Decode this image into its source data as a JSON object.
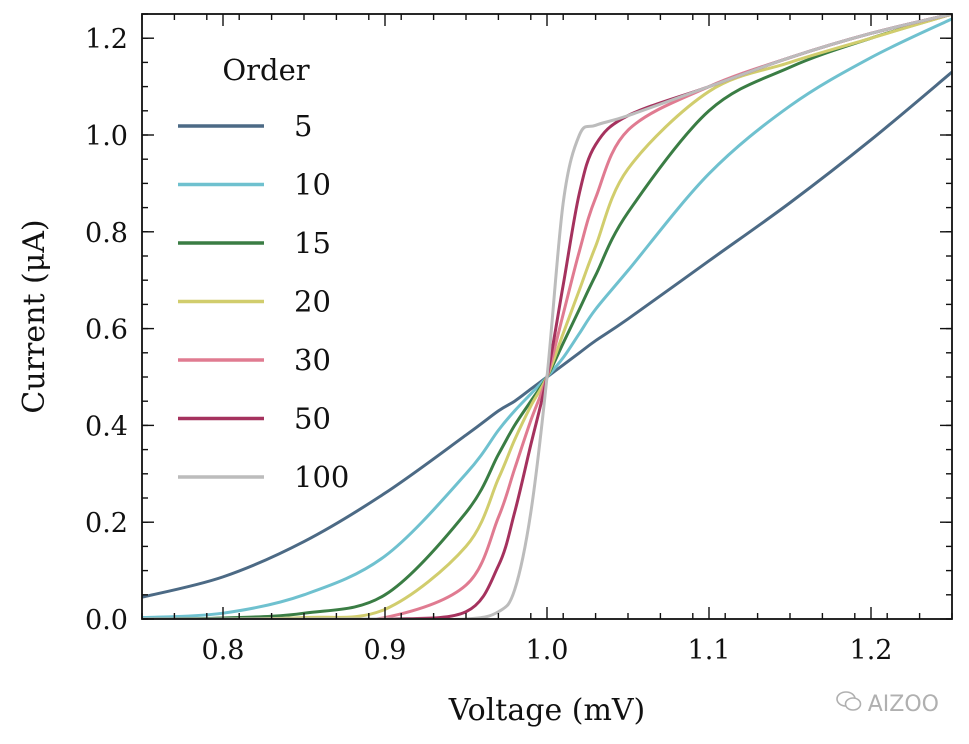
{
  "chart_data": {
    "type": "line",
    "xlabel": "Voltage (mV)",
    "ylabel": "Current (μA)",
    "xlim": [
      0.75,
      1.25
    ],
    "ylim": [
      0.0,
      1.25
    ],
    "x_ticks": [
      "0.8",
      "0.9",
      "1.0",
      "1.1",
      "1.2"
    ],
    "y_ticks": [
      "0.0",
      "0.2",
      "0.4",
      "0.6",
      "0.8",
      "1.0",
      "1.2"
    ],
    "grid": false,
    "legend": {
      "title": "Order",
      "position": "top-left"
    },
    "x": [
      0.75,
      0.8,
      0.85,
      0.9,
      0.95,
      0.97,
      0.98,
      0.99,
      1.0,
      1.01,
      1.02,
      1.03,
      1.05,
      1.1,
      1.15,
      1.2,
      1.25
    ],
    "series": [
      {
        "name": "5",
        "color": "#4c6a85",
        "values": [
          0.045,
          0.087,
          0.16,
          0.26,
          0.38,
          0.43,
          0.45,
          0.475,
          0.5,
          0.525,
          0.55,
          0.575,
          0.62,
          0.74,
          0.86,
          0.99,
          1.13
        ]
      },
      {
        "name": "10",
        "color": "#6fc1cf",
        "values": [
          0.003,
          0.012,
          0.05,
          0.13,
          0.3,
          0.39,
          0.43,
          0.465,
          0.5,
          0.54,
          0.59,
          0.64,
          0.72,
          0.92,
          1.06,
          1.16,
          1.24
        ]
      },
      {
        "name": "15",
        "color": "#3a7d44",
        "values": [
          0.0,
          0.002,
          0.012,
          0.05,
          0.22,
          0.34,
          0.4,
          0.45,
          0.5,
          0.57,
          0.64,
          0.71,
          0.84,
          1.05,
          1.14,
          1.2,
          1.25
        ]
      },
      {
        "name": "20",
        "color": "#d1cd6d",
        "values": [
          0.0,
          0.0,
          0.003,
          0.02,
          0.15,
          0.29,
          0.37,
          0.44,
          0.5,
          0.59,
          0.68,
          0.77,
          0.93,
          1.09,
          1.15,
          1.2,
          1.25
        ]
      },
      {
        "name": "30",
        "color": "#e07b91",
        "values": [
          0.0,
          0.0,
          0.0,
          0.003,
          0.07,
          0.21,
          0.31,
          0.41,
          0.5,
          0.63,
          0.76,
          0.87,
          1.01,
          1.1,
          1.16,
          1.21,
          1.25
        ]
      },
      {
        "name": "50",
        "color": "#a5325e",
        "values": [
          0.0,
          0.0,
          0.0,
          0.0,
          0.015,
          0.11,
          0.22,
          0.36,
          0.5,
          0.69,
          0.88,
          0.98,
          1.04,
          1.1,
          1.16,
          1.21,
          1.25
        ]
      },
      {
        "name": "100",
        "color": "#bcbcbc",
        "values": [
          0.0,
          0.0,
          0.0,
          0.0,
          0.0,
          0.015,
          0.06,
          0.22,
          0.5,
          0.86,
          1.0,
          1.02,
          1.04,
          1.1,
          1.16,
          1.21,
          1.25
        ]
      }
    ]
  },
  "watermark": {
    "text": "AIZOO",
    "icon": "wechat-icon"
  }
}
